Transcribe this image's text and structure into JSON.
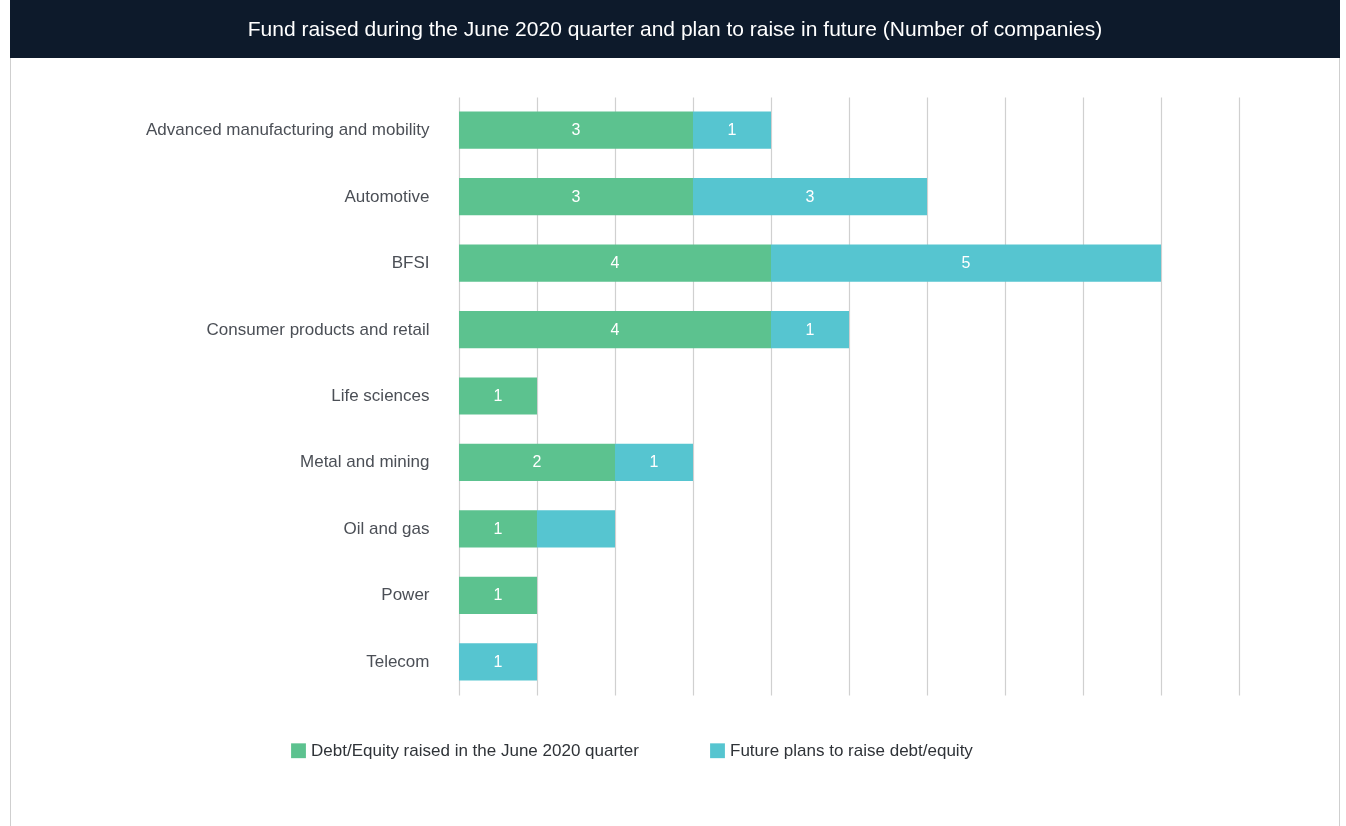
{
  "chart_data": {
    "type": "bar",
    "orientation": "horizontal",
    "stacked": true,
    "title": "Fund raised during the June 2020 quarter and plan to raise in future (Number of companies)",
    "categories": [
      "Advanced manufacturing and mobility",
      "Automotive",
      "BFSI",
      "Consumer products and retail",
      "Life sciences",
      "Metal and mining",
      "Oil and gas",
      "Power",
      "Telecom"
    ],
    "series": [
      {
        "name": "Debt/Equity raised in the June 2020 quarter",
        "color": "#5cc28f",
        "values": [
          3,
          3,
          4,
          4,
          1,
          2,
          1,
          1,
          null
        ],
        "value_labels": [
          "3",
          "3",
          "4",
          "4",
          "1",
          "2",
          "1",
          "1",
          null
        ]
      },
      {
        "name": "Future plans to raise debt/equity",
        "color": "#56c5d0",
        "values": [
          1,
          3,
          5,
          1,
          null,
          1,
          1,
          null,
          1
        ],
        "value_labels": [
          "1",
          "3",
          "5",
          "1",
          null,
          "1",
          null,
          null,
          "1"
        ]
      }
    ],
    "xlim": [
      0,
      10
    ],
    "xticks": [
      {
        "value": 0,
        "label": null
      },
      {
        "value": 1,
        "label": null
      },
      {
        "value": 2,
        "label": null
      },
      {
        "value": 3,
        "label": null
      },
      {
        "value": 4,
        "label": null
      },
      {
        "value": 5,
        "label": null
      },
      {
        "value": 6,
        "label": null
      },
      {
        "value": 7,
        "label": null
      },
      {
        "value": 8,
        "label": null
      },
      {
        "value": 9,
        "label": null
      },
      {
        "value": 10,
        "label": null
      }
    ],
    "grid": "x",
    "legend": "bottom",
    "tick_labels": "y"
  }
}
